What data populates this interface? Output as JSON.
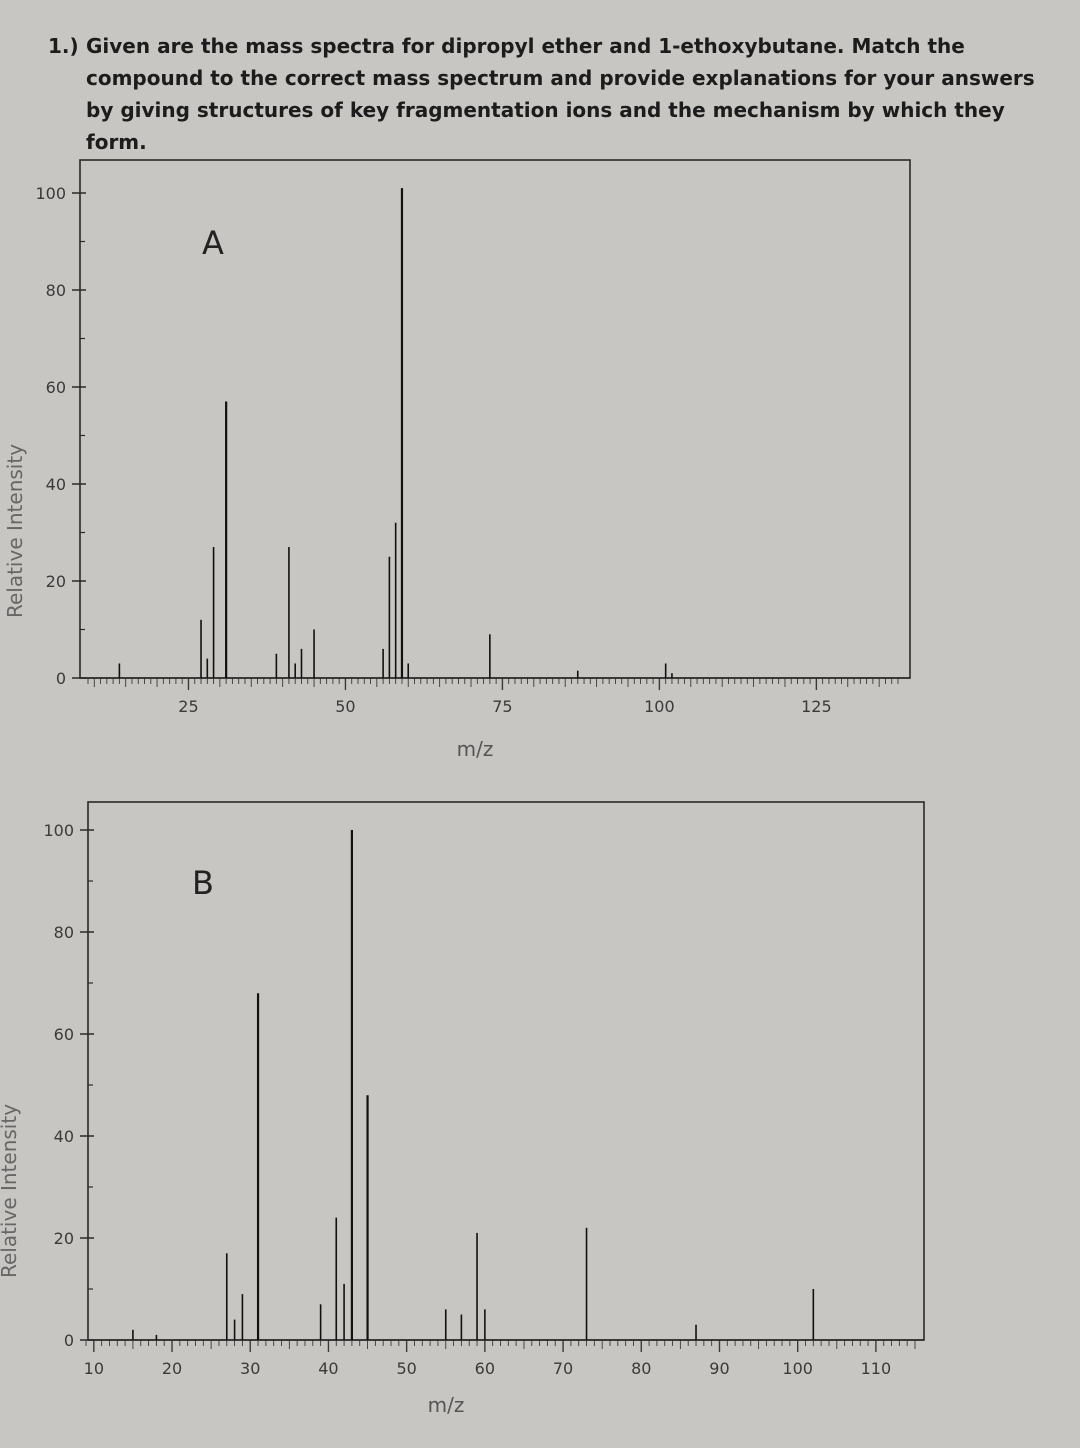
{
  "question": {
    "number": "1.)",
    "text": "Given are the mass spectra for dipropyl ether and 1-ethoxybutane. Match the compound to the correct mass spectrum and provide explanations for your answers by giving structures of key fragmentation ions and the mechanism by which they form."
  },
  "chart_data": [
    {
      "type": "bar",
      "panel_label": "A",
      "xlabel": "m/z",
      "ylabel": "Relative Intensity",
      "xlim": [
        9,
        138
      ],
      "ylim": [
        0,
        100
      ],
      "x_ticks": [
        25,
        50,
        75,
        100,
        125
      ],
      "y_ticks": [
        0,
        20,
        40,
        60,
        80,
        100
      ],
      "peaks": [
        {
          "mz": 14,
          "intensity": 3
        },
        {
          "mz": 27,
          "intensity": 12
        },
        {
          "mz": 28,
          "intensity": 4
        },
        {
          "mz": 29,
          "intensity": 27
        },
        {
          "mz": 31,
          "intensity": 57
        },
        {
          "mz": 39,
          "intensity": 5
        },
        {
          "mz": 41,
          "intensity": 27
        },
        {
          "mz": 42,
          "intensity": 3
        },
        {
          "mz": 43,
          "intensity": 6
        },
        {
          "mz": 45,
          "intensity": 10
        },
        {
          "mz": 56,
          "intensity": 6
        },
        {
          "mz": 57,
          "intensity": 25
        },
        {
          "mz": 58,
          "intensity": 32
        },
        {
          "mz": 59,
          "intensity": 101
        },
        {
          "mz": 60,
          "intensity": 3
        },
        {
          "mz": 73,
          "intensity": 9
        },
        {
          "mz": 87,
          "intensity": 1.5
        },
        {
          "mz": 101,
          "intensity": 3
        },
        {
          "mz": 102,
          "intensity": 1
        }
      ]
    },
    {
      "type": "bar",
      "panel_label": "B",
      "xlabel": "m/z",
      "ylabel": "Relative Intensity",
      "xlim": [
        9,
        115
      ],
      "ylim": [
        0,
        100
      ],
      "x_ticks": [
        10,
        20,
        30,
        40,
        50,
        60,
        70,
        80,
        90,
        100,
        110
      ],
      "y_ticks": [
        0,
        20,
        40,
        60,
        80,
        100
      ],
      "peaks": [
        {
          "mz": 15,
          "intensity": 2
        },
        {
          "mz": 18,
          "intensity": 1
        },
        {
          "mz": 27,
          "intensity": 17
        },
        {
          "mz": 28,
          "intensity": 4
        },
        {
          "mz": 29,
          "intensity": 9
        },
        {
          "mz": 31,
          "intensity": 68
        },
        {
          "mz": 39,
          "intensity": 7
        },
        {
          "mz": 41,
          "intensity": 24
        },
        {
          "mz": 42,
          "intensity": 11
        },
        {
          "mz": 43,
          "intensity": 100
        },
        {
          "mz": 45,
          "intensity": 48
        },
        {
          "mz": 55,
          "intensity": 6
        },
        {
          "mz": 57,
          "intensity": 5
        },
        {
          "mz": 59,
          "intensity": 21
        },
        {
          "mz": 60,
          "intensity": 6
        },
        {
          "mz": 73,
          "intensity": 22
        },
        {
          "mz": 87,
          "intensity": 3
        },
        {
          "mz": 102,
          "intensity": 10
        }
      ]
    }
  ]
}
